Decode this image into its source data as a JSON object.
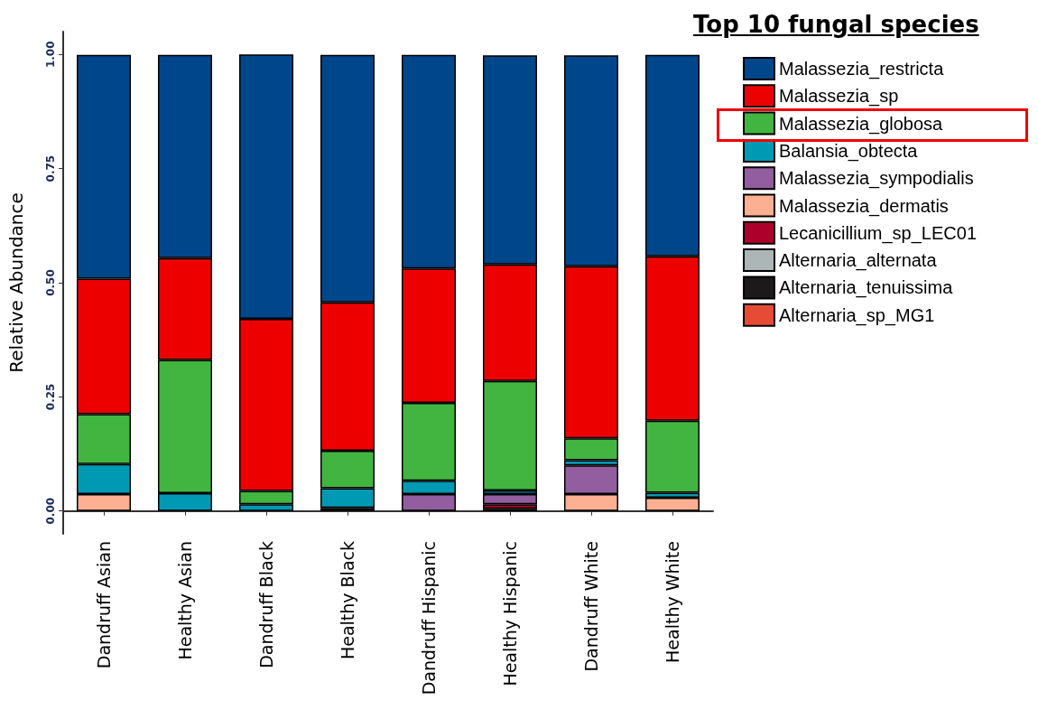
{
  "chart_data": {
    "type": "bar",
    "stacked": true,
    "ylabel": "Relative Abundance",
    "legend_title": "Top 10 fungal species",
    "legend": "right",
    "categories": [
      "Dandruff Asian",
      "Healthy Asian",
      "Dandruff Black",
      "Healthy Black",
      "Dandruff Hispanic",
      "Healthy Hispanic",
      "Dandruff White",
      "Healthy White"
    ],
    "ylim": [
      -0.05,
      1.05
    ],
    "yticks": [
      {
        "value": 0,
        "label": "0.00"
      },
      {
        "value": 0.25,
        "label": "0.25"
      },
      {
        "value": 0.5,
        "label": "0.50"
      },
      {
        "value": 0.75,
        "label": "0.75"
      },
      {
        "value": 1,
        "label": "1.00"
      }
    ],
    "grid": false,
    "series": [
      {
        "name": "Alternaria_sp_MG1",
        "color": "#e64b35",
        "values": [
          null,
          null,
          null,
          null,
          null,
          null,
          null,
          null
        ]
      },
      {
        "name": "Alternaria_tenuissima",
        "color": "#1b1919",
        "values": [
          null,
          null,
          null,
          0.007,
          null,
          0.005,
          null,
          null
        ]
      },
      {
        "name": "Alternaria_alternata",
        "color": "#adb6b6",
        "values": [
          null,
          null,
          null,
          null,
          null,
          null,
          null,
          null
        ]
      },
      {
        "name": "Lecanicillium_sp_LEC01",
        "color": "#ad002a",
        "values": [
          null,
          null,
          null,
          null,
          null,
          0.01,
          null,
          null
        ]
      },
      {
        "name": "Malassezia_dermatis",
        "color": "#fdaf91",
        "values": [
          0.037,
          null,
          null,
          null,
          null,
          null,
          0.037,
          0.029
        ]
      },
      {
        "name": "Malassezia_sympodialis",
        "color": "#925e9f",
        "values": [
          null,
          null,
          null,
          null,
          0.037,
          0.022,
          0.063,
          null
        ]
      },
      {
        "name": "Balansia_obtecta",
        "color": "#0099b4",
        "values": [
          0.066,
          0.039,
          0.015,
          0.043,
          0.029,
          0.008,
          0.011,
          0.011
        ]
      },
      {
        "name": "Malassezia_globosa",
        "color": "#42b540",
        "values": [
          0.109,
          0.292,
          0.029,
          0.082,
          0.171,
          0.24,
          0.048,
          0.158
        ]
      },
      {
        "name": "Malassezia_sp",
        "color": "#ed0000",
        "values": [
          0.297,
          0.223,
          0.377,
          0.325,
          0.294,
          0.255,
          0.377,
          0.36
        ]
      },
      {
        "name": "Malassezia_restricta",
        "color": "#00468b",
        "values": [
          0.49,
          0.445,
          0.579,
          0.542,
          0.468,
          0.458,
          0.462,
          0.441
        ]
      }
    ]
  }
}
